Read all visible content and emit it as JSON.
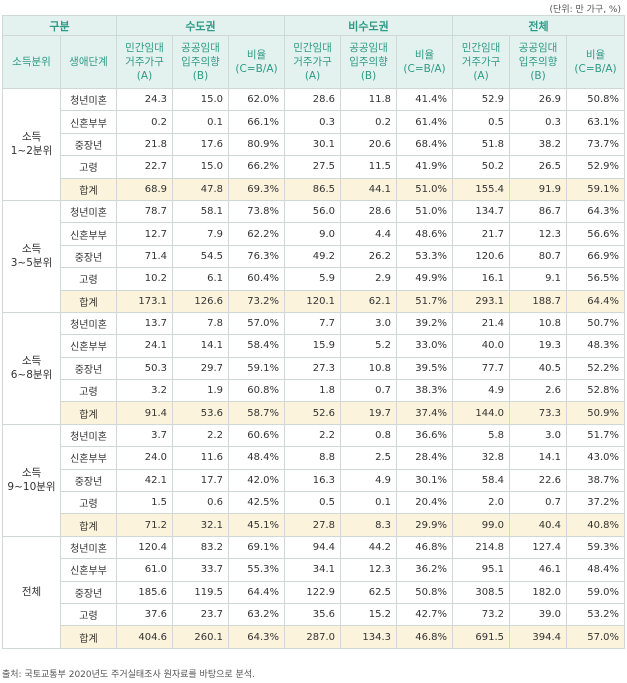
{
  "unit_note": "(단위: 만 가구, %)",
  "header": {
    "category": "구분",
    "regions": [
      "수도권",
      "비수도권",
      "전체"
    ],
    "income_col": "소득분위",
    "life_col": "생애단계",
    "sub_cols": [
      [
        "민간임대",
        "거주가구",
        "(A)"
      ],
      [
        "공공임대",
        "입주의향",
        "(B)"
      ],
      [
        "비율",
        "(C=B/A)"
      ]
    ]
  },
  "groups": [
    {
      "label": [
        "소득",
        "1~2분위"
      ],
      "rows": [
        {
          "stage": "청년미혼",
          "values": [
            "24.3",
            "15.0",
            "62.0%",
            "28.6",
            "11.8",
            "41.4%",
            "52.9",
            "26.9",
            "50.8%"
          ]
        },
        {
          "stage": "신혼부부",
          "values": [
            "0.2",
            "0.1",
            "66.1%",
            "0.3",
            "0.2",
            "61.4%",
            "0.5",
            "0.3",
            "63.1%"
          ]
        },
        {
          "stage": "중장년",
          "values": [
            "21.8",
            "17.6",
            "80.9%",
            "30.1",
            "20.6",
            "68.4%",
            "51.8",
            "38.2",
            "73.7%"
          ]
        },
        {
          "stage": "고령",
          "values": [
            "22.7",
            "15.0",
            "66.2%",
            "27.5",
            "11.5",
            "41.9%",
            "50.2",
            "26.5",
            "52.9%"
          ]
        },
        {
          "stage": "합계",
          "values": [
            "68.9",
            "47.8",
            "69.3%",
            "86.5",
            "44.1",
            "51.0%",
            "155.4",
            "91.9",
            "59.1%"
          ]
        }
      ]
    },
    {
      "label": [
        "소득",
        "3~5분위"
      ],
      "rows": [
        {
          "stage": "청년미혼",
          "values": [
            "78.7",
            "58.1",
            "73.8%",
            "56.0",
            "28.6",
            "51.0%",
            "134.7",
            "86.7",
            "64.3%"
          ]
        },
        {
          "stage": "신혼부부",
          "values": [
            "12.7",
            "7.9",
            "62.2%",
            "9.0",
            "4.4",
            "48.6%",
            "21.7",
            "12.3",
            "56.6%"
          ]
        },
        {
          "stage": "중장년",
          "values": [
            "71.4",
            "54.5",
            "76.3%",
            "49.2",
            "26.2",
            "53.3%",
            "120.6",
            "80.7",
            "66.9%"
          ]
        },
        {
          "stage": "고령",
          "values": [
            "10.2",
            "6.1",
            "60.4%",
            "5.9",
            "2.9",
            "49.9%",
            "16.1",
            "9.1",
            "56.5%"
          ]
        },
        {
          "stage": "합계",
          "values": [
            "173.1",
            "126.6",
            "73.2%",
            "120.1",
            "62.1",
            "51.7%",
            "293.1",
            "188.7",
            "64.4%"
          ]
        }
      ]
    },
    {
      "label": [
        "소득",
        "6~8분위"
      ],
      "rows": [
        {
          "stage": "청년미혼",
          "values": [
            "13.7",
            "7.8",
            "57.0%",
            "7.7",
            "3.0",
            "39.2%",
            "21.4",
            "10.8",
            "50.7%"
          ]
        },
        {
          "stage": "신혼부부",
          "values": [
            "24.1",
            "14.1",
            "58.4%",
            "15.9",
            "5.2",
            "33.0%",
            "40.0",
            "19.3",
            "48.3%"
          ]
        },
        {
          "stage": "중장년",
          "values": [
            "50.3",
            "29.7",
            "59.1%",
            "27.3",
            "10.8",
            "39.5%",
            "77.7",
            "40.5",
            "52.2%"
          ]
        },
        {
          "stage": "고령",
          "values": [
            "3.2",
            "1.9",
            "60.8%",
            "1.8",
            "0.7",
            "38.3%",
            "4.9",
            "2.6",
            "52.8%"
          ]
        },
        {
          "stage": "합계",
          "values": [
            "91.4",
            "53.6",
            "58.7%",
            "52.6",
            "19.7",
            "37.4%",
            "144.0",
            "73.3",
            "50.9%"
          ]
        }
      ]
    },
    {
      "label": [
        "소득",
        "9~10분위"
      ],
      "rows": [
        {
          "stage": "청년미혼",
          "values": [
            "3.7",
            "2.2",
            "60.6%",
            "2.2",
            "0.8",
            "36.6%",
            "5.8",
            "3.0",
            "51.7%"
          ]
        },
        {
          "stage": "신혼부부",
          "values": [
            "24.0",
            "11.6",
            "48.4%",
            "8.8",
            "2.5",
            "28.4%",
            "32.8",
            "14.1",
            "43.0%"
          ]
        },
        {
          "stage": "중장년",
          "values": [
            "42.1",
            "17.7",
            "42.0%",
            "16.3",
            "4.9",
            "30.1%",
            "58.4",
            "22.6",
            "38.7%"
          ]
        },
        {
          "stage": "고령",
          "values": [
            "1.5",
            "0.6",
            "42.5%",
            "0.5",
            "0.1",
            "20.4%",
            "2.0",
            "0.7",
            "37.2%"
          ]
        },
        {
          "stage": "합계",
          "values": [
            "71.2",
            "32.1",
            "45.1%",
            "27.8",
            "8.3",
            "29.9%",
            "99.0",
            "40.4",
            "40.8%"
          ]
        }
      ]
    },
    {
      "label": [
        "전체"
      ],
      "rows": [
        {
          "stage": "청년미혼",
          "values": [
            "120.4",
            "83.2",
            "69.1%",
            "94.4",
            "44.2",
            "46.8%",
            "214.8",
            "127.4",
            "59.3%"
          ]
        },
        {
          "stage": "신혼부부",
          "values": [
            "61.0",
            "33.7",
            "55.3%",
            "34.1",
            "12.3",
            "36.2%",
            "95.1",
            "46.1",
            "48.4%"
          ]
        },
        {
          "stage": "중장년",
          "values": [
            "185.6",
            "119.5",
            "64.4%",
            "122.9",
            "62.5",
            "50.8%",
            "308.5",
            "182.0",
            "59.0%"
          ]
        },
        {
          "stage": "고령",
          "values": [
            "37.6",
            "23.7",
            "63.2%",
            "35.6",
            "15.2",
            "42.7%",
            "73.2",
            "39.0",
            "53.2%"
          ]
        },
        {
          "stage": "합계",
          "values": [
            "404.6",
            "260.1",
            "64.3%",
            "287.0",
            "134.3",
            "46.8%",
            "691.5",
            "394.4",
            "57.0%"
          ]
        }
      ]
    }
  ],
  "source": "출처: 국토교통부 2020년도 주거실태조사 원자료를 바탕으로 분석."
}
